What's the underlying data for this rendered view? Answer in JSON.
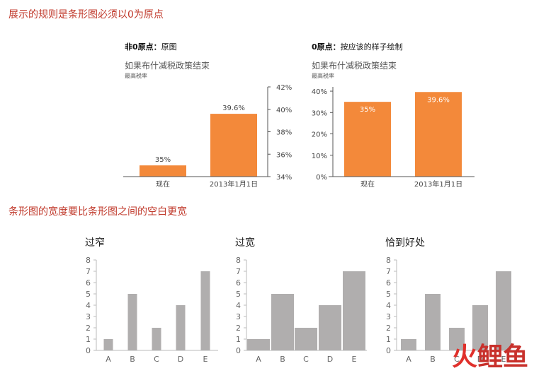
{
  "headings": {
    "h1": "展示的规则是条形图必须以0为原点",
    "h2": "条形图的宽度要比条形图之间的空白更宽"
  },
  "top_left": {
    "label_bold": "非0原点：",
    "label_rest": "原图",
    "subtitle": "如果布什减税政策结束",
    "subtitle2": "最高税率"
  },
  "top_right": {
    "label_bold": "0原点：",
    "label_rest": "按应该的样子绘制",
    "subtitle": "如果布什减税政策结束",
    "subtitle2": "最高税率"
  },
  "small_titles": [
    "过窄",
    "过宽",
    "恰到好处"
  ],
  "watermark": {
    "part1": "火",
    "part2": "鲤鱼"
  },
  "colors": {
    "orange": "#f3893a",
    "gray": "#b0aeae",
    "axis": "#555555",
    "heading": "#c0392b"
  },
  "chart_data": [
    {
      "type": "bar",
      "categories": [
        "现在",
        "2013年1月1日"
      ],
      "values": [
        35,
        39.6
      ],
      "data_labels": [
        "35%",
        "39.6%"
      ],
      "ylim": [
        34,
        42
      ],
      "yticks": [
        "34%",
        "36%",
        "38%",
        "40%",
        "42%"
      ],
      "ytick_values": [
        34,
        36,
        38,
        40,
        42
      ],
      "axis_side": "right",
      "color": "#f3893a"
    },
    {
      "type": "bar",
      "categories": [
        "现在",
        "2013年1月1日"
      ],
      "values": [
        35,
        39.6
      ],
      "data_labels": [
        "35%",
        "39.6%"
      ],
      "ylim": [
        0,
        42
      ],
      "yticks": [
        "0%",
        "10%",
        "20%",
        "30%",
        "40%"
      ],
      "ytick_values": [
        0,
        10,
        20,
        30,
        40
      ],
      "axis_side": "left",
      "color": "#f3893a"
    },
    {
      "type": "bar",
      "title": "过窄",
      "categories": [
        "A",
        "B",
        "C",
        "D",
        "E"
      ],
      "values": [
        1,
        5,
        2,
        4,
        7
      ],
      "ylim": [
        0,
        8
      ],
      "yticks": [
        "0",
        "1",
        "2",
        "3",
        "4",
        "5",
        "6",
        "7",
        "8"
      ],
      "color": "#b0aeae"
    },
    {
      "type": "bar",
      "title": "过宽",
      "categories": [
        "A",
        "B",
        "C",
        "D",
        "E"
      ],
      "values": [
        1,
        5,
        2,
        4,
        7
      ],
      "ylim": [
        0,
        8
      ],
      "yticks": [
        "0",
        "1",
        "2",
        "3",
        "4",
        "5",
        "6",
        "7",
        "8"
      ],
      "color": "#b0aeae"
    },
    {
      "type": "bar",
      "title": "恰到好处",
      "categories": [
        "A",
        "B",
        "C",
        "D",
        "E"
      ],
      "values": [
        1,
        5,
        2,
        4,
        7
      ],
      "ylim": [
        0,
        8
      ],
      "yticks": [
        "0",
        "1",
        "2",
        "3",
        "4",
        "5",
        "6",
        "7",
        "8"
      ],
      "color": "#b0aeae"
    }
  ]
}
